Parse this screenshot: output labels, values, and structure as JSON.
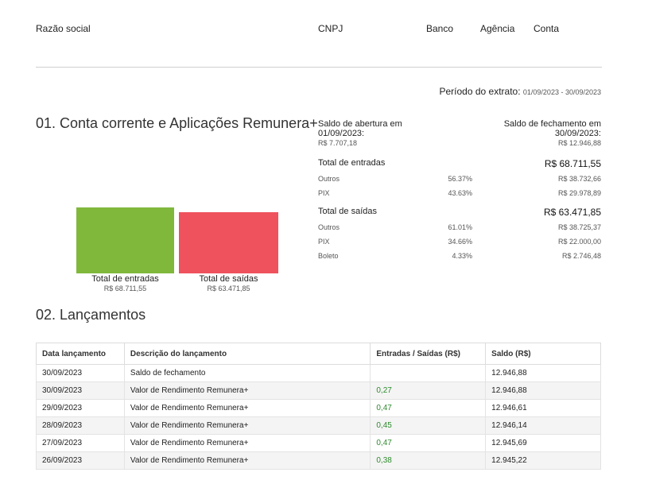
{
  "header": {
    "razao_social": "Razão social",
    "cnpj": "CNPJ",
    "banco": "Banco",
    "agencia": "Agência",
    "conta": "Conta"
  },
  "period": {
    "label": "Período do extrato:",
    "value": "01/09/2023 - 30/09/2023"
  },
  "section1": {
    "title": "01. Conta corrente e Aplicações Remunera+",
    "opening": {
      "label_line1": "Saldo de abertura em",
      "label_line2": "01/09/2023:",
      "value": "R$ 7.707,18"
    },
    "closing": {
      "label_line1": "Saldo de fechamento em",
      "label_line2": "30/09/2023:",
      "value": "R$ 12.946,88"
    },
    "entradas": {
      "label": "Total de entradas",
      "total": "R$ 68.711,55",
      "items": [
        {
          "name": "Outros",
          "pct": "56.37%",
          "amount": "R$ 38.732,66"
        },
        {
          "name": "PIX",
          "pct": "43.63%",
          "amount": "R$ 29.978,89"
        }
      ]
    },
    "saidas": {
      "label": "Total de saídas",
      "total": "R$ 63.471,85",
      "items": [
        {
          "name": "Outros",
          "pct": "61.01%",
          "amount": "R$ 38.725,37"
        },
        {
          "name": "PIX",
          "pct": "34.66%",
          "amount": "R$ 22.000,00"
        },
        {
          "name": "Boleto",
          "pct": "4.33%",
          "amount": "R$ 2.746,48"
        }
      ]
    }
  },
  "chart_data": {
    "type": "bar",
    "categories": [
      "Total de entradas",
      "Total de saídas"
    ],
    "values": [
      68711.55,
      63471.85
    ],
    "value_labels": [
      "R$ 68.711,55",
      "R$ 63.471,85"
    ],
    "colors": [
      "#80b83c",
      "#ef525d"
    ],
    "title": "",
    "xlabel": "",
    "ylabel": ""
  },
  "section2": {
    "title": "02. Lançamentos",
    "columns": [
      "Data lançamento",
      "Descrição do lançamento",
      "Entradas / Saídas (R$)",
      "Saldo (R$)"
    ],
    "rows": [
      {
        "date": "30/09/2023",
        "desc": "Saldo de fechamento",
        "amount": "",
        "balance": "12.946,88"
      },
      {
        "date": "30/09/2023",
        "desc": "Valor de Rendimento Remunera+",
        "amount": "0,27",
        "balance": "12.946,88"
      },
      {
        "date": "29/09/2023",
        "desc": "Valor de Rendimento Remunera+",
        "amount": "0,47",
        "balance": "12.946,61"
      },
      {
        "date": "28/09/2023",
        "desc": "Valor de Rendimento Remunera+",
        "amount": "0,45",
        "balance": "12.946,14"
      },
      {
        "date": "27/09/2023",
        "desc": "Valor de Rendimento Remunera+",
        "amount": "0,47",
        "balance": "12.945,69"
      },
      {
        "date": "26/09/2023",
        "desc": "Valor de Rendimento Remunera+",
        "amount": "0,38",
        "balance": "12.945,22"
      }
    ]
  }
}
